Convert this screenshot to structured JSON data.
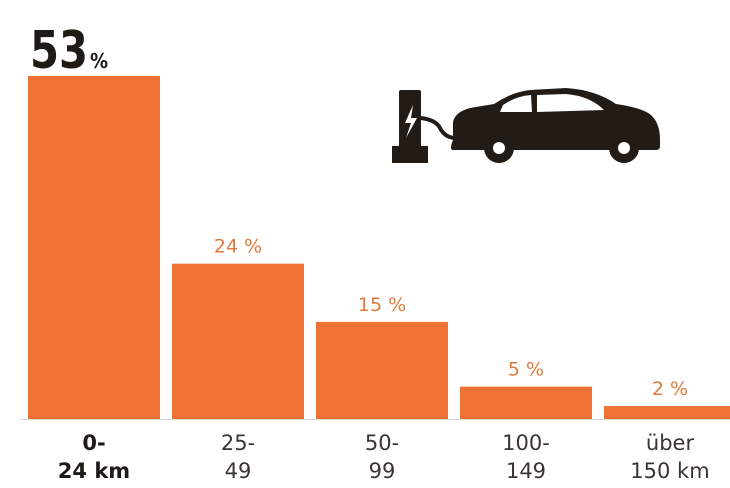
{
  "chart_data": {
    "type": "bar",
    "title": "",
    "xlabel": "",
    "ylabel": "",
    "unit": "%",
    "ylim": [
      0,
      53
    ],
    "categories": [
      [
        "0-",
        "24 km"
      ],
      [
        "25-",
        "49"
      ],
      [
        "50-",
        "99"
      ],
      [
        "100-",
        "149"
      ],
      [
        "über",
        "150 km"
      ]
    ],
    "values": [
      53,
      24,
      15,
      5,
      2
    ],
    "value_labels": [
      "53",
      "24 %",
      "15 %",
      "5 %",
      "2 %"
    ],
    "highlight_index": 0,
    "bar_color": "#ef7133",
    "label_color": "#e07a3c",
    "icon": "electric-car-charging-icon"
  }
}
